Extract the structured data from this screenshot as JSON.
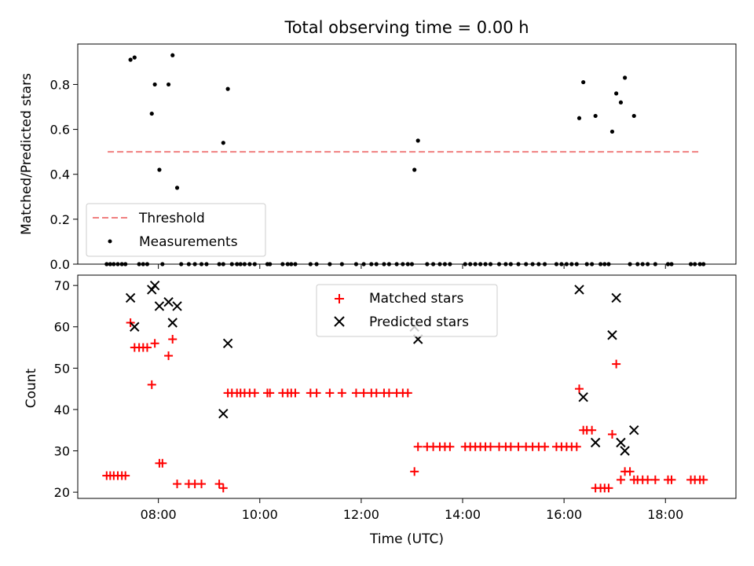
{
  "figure_title": "Total observing time = 0.00 h",
  "colors": {
    "threshold": "#f08080",
    "measurement": "#000000",
    "matched": "#ff0000",
    "predicted": "#000000"
  },
  "chart_data": [
    {
      "type": "scatter",
      "title": "",
      "xlabel": "",
      "ylabel": "Matched/Predicted stars",
      "xlim": [
        6.41,
        19.39
      ],
      "ylim": [
        0,
        0.98
      ],
      "x_unit": "hours UTC",
      "yticks": [
        0.0,
        0.2,
        0.4,
        0.6,
        0.8
      ],
      "ytick_labels": [
        "0.0",
        "0.2",
        "0.4",
        "0.6",
        "0.8"
      ],
      "legend": {
        "placement": "lower-left",
        "entries": [
          "Threshold",
          "Measurements"
        ]
      },
      "series": [
        {
          "name": "Threshold",
          "style": "dashed-line",
          "x": [
            7.0,
            18.7
          ],
          "y": [
            0.5,
            0.5
          ]
        },
        {
          "name": "Measurements",
          "style": "dot",
          "x": [
            7.45,
            7.53,
            7.87,
            7.93,
            8.02,
            8.2,
            8.28,
            8.37,
            9.28,
            9.37,
            13.05,
            13.12,
            16.3,
            16.38,
            16.62,
            16.95,
            17.03,
            17.12,
            17.2,
            17.38
          ],
          "y": [
            0.91,
            0.92,
            0.67,
            0.8,
            0.42,
            0.8,
            0.93,
            0.34,
            0.54,
            0.78,
            0.42,
            0.55,
            0.65,
            0.81,
            0.66,
            0.59,
            0.76,
            0.72,
            0.83,
            0.66
          ]
        },
        {
          "name": "Measurements (zero)",
          "style": "dot",
          "x": [
            6.98,
            7.05,
            7.12,
            7.2,
            7.28,
            7.35,
            7.62,
            7.7,
            7.78,
            8.08,
            8.45,
            8.6,
            8.72,
            8.85,
            8.95,
            9.2,
            9.28,
            9.45,
            9.55,
            9.62,
            9.7,
            9.8,
            9.9,
            10.15,
            10.2,
            10.45,
            10.55,
            10.62,
            10.7,
            11.0,
            11.12,
            11.38,
            11.62,
            11.9,
            12.05,
            12.2,
            12.3,
            12.45,
            12.55,
            12.7,
            12.82,
            12.92,
            13.0,
            13.3,
            13.42,
            13.55,
            13.65,
            13.75,
            14.05,
            14.15,
            14.25,
            14.35,
            14.45,
            14.55,
            14.72,
            14.85,
            14.95,
            15.1,
            15.25,
            15.38,
            15.5,
            15.62,
            15.85,
            15.95,
            16.05,
            16.15,
            16.25,
            16.45,
            16.55,
            16.72,
            16.8,
            16.88,
            17.3,
            17.45,
            17.55,
            17.65,
            17.8,
            18.05,
            18.12,
            18.5,
            18.58,
            18.68,
            18.75
          ],
          "y": [
            0,
            0,
            0,
            0,
            0,
            0,
            0,
            0,
            0,
            0,
            0,
            0,
            0,
            0,
            0,
            0,
            0,
            0,
            0,
            0,
            0,
            0,
            0,
            0,
            0,
            0,
            0,
            0,
            0,
            0,
            0,
            0,
            0,
            0,
            0,
            0,
            0,
            0,
            0,
            0,
            0,
            0,
            0,
            0,
            0,
            0,
            0,
            0,
            0,
            0,
            0,
            0,
            0,
            0,
            0,
            0,
            0,
            0,
            0,
            0,
            0,
            0,
            0,
            0,
            0,
            0,
            0,
            0,
            0,
            0,
            0,
            0,
            0,
            0,
            0,
            0,
            0,
            0,
            0,
            0,
            0,
            0,
            0
          ]
        }
      ]
    },
    {
      "type": "scatter",
      "title": "",
      "xlabel": "Time (UTC)",
      "ylabel": "Count",
      "xlim": [
        6.41,
        19.39
      ],
      "ylim": [
        18.5,
        72.5
      ],
      "x_unit": "hours UTC",
      "xticks": [
        8,
        10,
        12,
        14,
        16,
        18
      ],
      "xtick_labels": [
        "08:00",
        "10:00",
        "12:00",
        "14:00",
        "16:00",
        "18:00"
      ],
      "yticks": [
        20,
        30,
        40,
        50,
        60,
        70
      ],
      "ytick_labels": [
        "20",
        "30",
        "40",
        "50",
        "60",
        "70"
      ],
      "legend": {
        "placement": "upper-center",
        "entries": [
          "Matched stars",
          "Predicted stars"
        ]
      },
      "series": [
        {
          "name": "Matched stars",
          "marker": "plus",
          "x": [
            6.98,
            7.05,
            7.12,
            7.2,
            7.28,
            7.35,
            7.45,
            7.53,
            7.62,
            7.7,
            7.78,
            7.87,
            7.93,
            8.02,
            8.08,
            8.2,
            8.28,
            8.37,
            8.6,
            8.72,
            8.85,
            9.2,
            9.28,
            9.37,
            9.45,
            9.55,
            9.62,
            9.7,
            9.8,
            9.9,
            10.15,
            10.2,
            10.45,
            10.55,
            10.62,
            10.7,
            11.0,
            11.12,
            11.38,
            11.62,
            11.9,
            12.05,
            12.2,
            12.3,
            12.45,
            12.55,
            12.7,
            12.82,
            12.92,
            13.05,
            13.12,
            13.3,
            13.42,
            13.55,
            13.65,
            13.75,
            14.05,
            14.15,
            14.25,
            14.35,
            14.45,
            14.55,
            14.72,
            14.85,
            14.95,
            15.1,
            15.25,
            15.38,
            15.5,
            15.62,
            15.85,
            15.95,
            16.05,
            16.15,
            16.25,
            16.3,
            16.38,
            16.45,
            16.55,
            16.62,
            16.72,
            16.8,
            16.88,
            16.95,
            17.03,
            17.12,
            17.2,
            17.3,
            17.38,
            17.45,
            17.55,
            17.65,
            17.8,
            18.05,
            18.12,
            18.5,
            18.58,
            18.68,
            18.75
          ],
          "y": [
            24,
            24,
            24,
            24,
            24,
            24,
            61,
            55,
            55,
            55,
            55,
            46,
            56,
            27,
            27,
            53,
            57,
            22,
            22,
            22,
            22,
            22,
            21,
            44,
            44,
            44,
            44,
            44,
            44,
            44,
            44,
            44,
            44,
            44,
            44,
            44,
            44,
            44,
            44,
            44,
            44,
            44,
            44,
            44,
            44,
            44,
            44,
            44,
            44,
            25,
            31,
            31,
            31,
            31,
            31,
            31,
            31,
            31,
            31,
            31,
            31,
            31,
            31,
            31,
            31,
            31,
            31,
            31,
            31,
            31,
            31,
            31,
            31,
            31,
            31,
            45,
            35,
            35,
            35,
            21,
            21,
            21,
            21,
            34,
            51,
            23,
            25,
            25,
            23,
            23,
            23,
            23,
            23,
            23,
            23,
            23,
            23,
            23,
            23
          ]
        },
        {
          "name": "Predicted stars",
          "marker": "x",
          "x": [
            7.45,
            7.53,
            7.87,
            7.93,
            8.02,
            8.2,
            8.28,
            8.37,
            9.28,
            9.37,
            13.05,
            13.12,
            16.3,
            16.38,
            16.62,
            16.95,
            17.03,
            17.12,
            17.2,
            17.38
          ],
          "y": [
            67,
            60,
            69,
            70,
            65,
            66,
            61,
            65,
            39,
            56,
            60,
            57,
            69,
            43,
            32,
            58,
            67,
            32,
            30,
            35
          ]
        }
      ]
    }
  ]
}
